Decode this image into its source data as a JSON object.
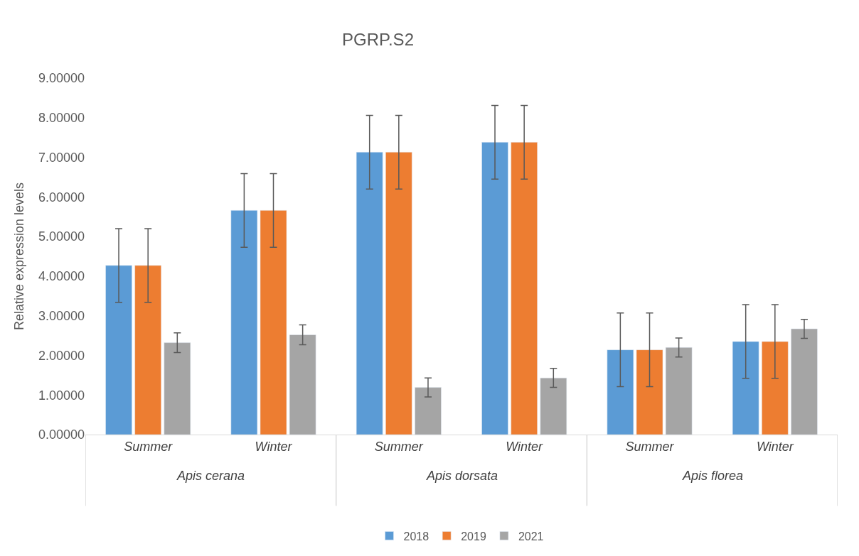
{
  "chart_data": {
    "type": "bar",
    "title": "PGRP.S2",
    "ylabel": "Relative expression levels",
    "categories": [
      "Summer",
      "Winter",
      "Summer",
      "Winter",
      "Summer",
      "Winter"
    ],
    "annotations": [
      "Apis cerana",
      "Apis dorsata",
      "Apis florea"
    ],
    "series": [
      {
        "name": "2018",
        "color": "#5b9bd5",
        "values": [
          4.27,
          5.66,
          7.13,
          7.38,
          2.14,
          2.35
        ],
        "errors": [
          0.93,
          0.93,
          0.93,
          0.93,
          0.93,
          0.93
        ]
      },
      {
        "name": "2019",
        "color": "#ed7d31",
        "values": [
          4.27,
          5.66,
          7.13,
          7.38,
          2.14,
          2.35
        ],
        "errors": [
          0.93,
          0.93,
          0.93,
          0.93,
          0.93,
          0.93
        ]
      },
      {
        "name": "2021",
        "color": "#a5a5a5",
        "values": [
          2.32,
          2.52,
          1.19,
          1.43,
          2.2,
          2.67
        ],
        "errors": [
          0.25,
          0.25,
          0.24,
          0.24,
          0.24,
          0.24
        ]
      }
    ],
    "ylim": [
      0,
      9
    ],
    "yticks": [
      {
        "value": 0,
        "label": "0.00000"
      },
      {
        "value": 1,
        "label": "1.00000"
      },
      {
        "value": 2,
        "label": "2.00000"
      },
      {
        "value": 3,
        "label": "3.00000"
      },
      {
        "value": 4,
        "label": "4.00000"
      },
      {
        "value": 5,
        "label": "5.00000"
      },
      {
        "value": 6,
        "label": "6.00000"
      },
      {
        "value": 7,
        "label": "7.00000"
      },
      {
        "value": 8,
        "label": "8.00000"
      },
      {
        "value": 9,
        "label": "9.00000"
      }
    ],
    "grid": false,
    "legend": "bottom"
  }
}
